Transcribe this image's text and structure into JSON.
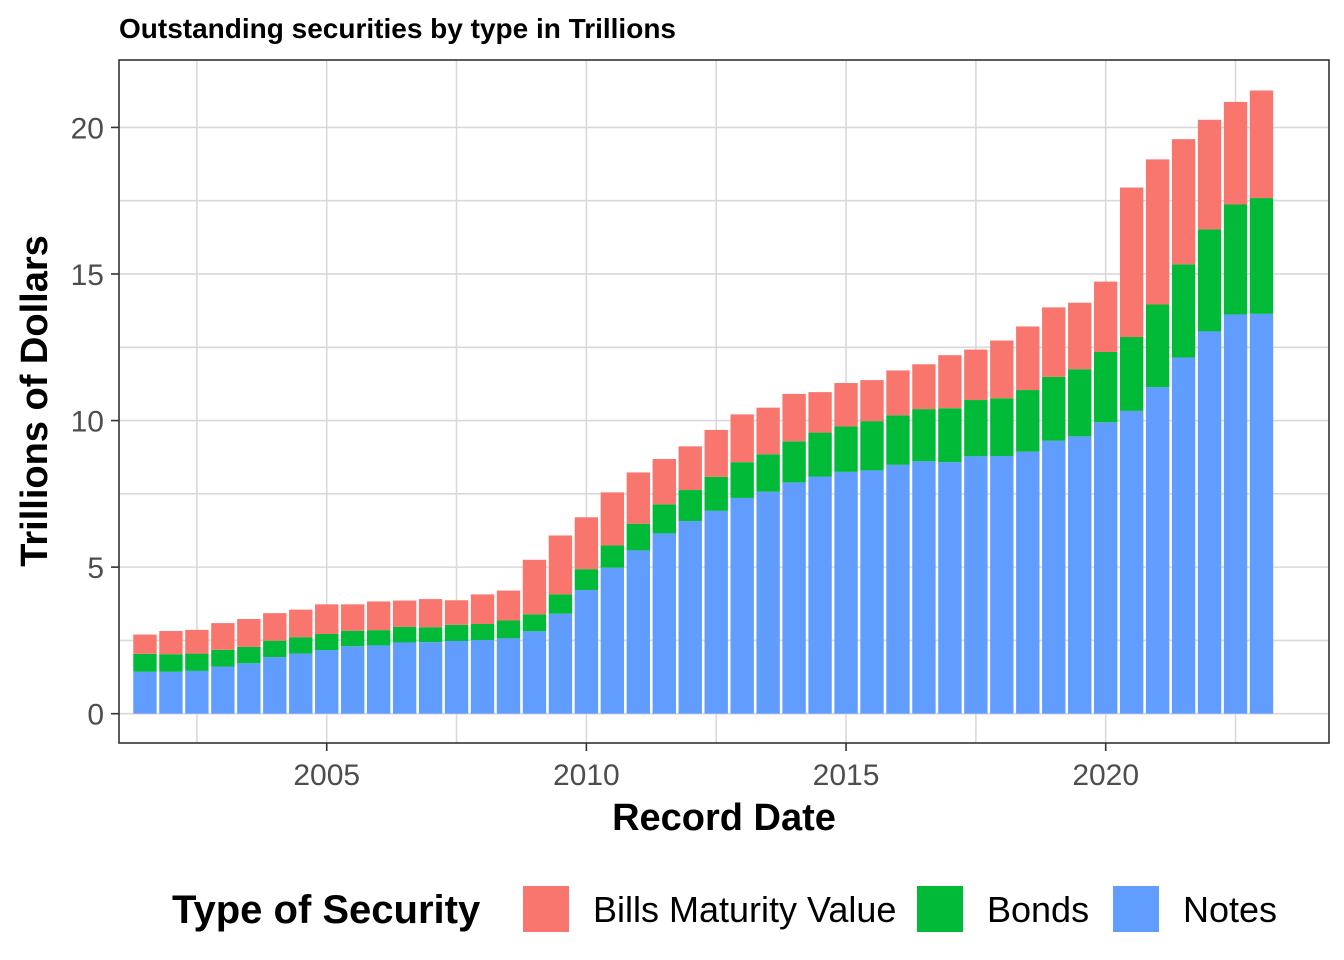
{
  "chart_data": {
    "type": "bar",
    "stacked": true,
    "title": "Outstanding securities by type in Trillions",
    "xlabel": "Record Date",
    "ylabel": "Trillions of Dollars",
    "xlim": [
      2001.0,
      2024.3
    ],
    "ylim": [
      -1.0,
      22.3
    ],
    "x_ticks": [
      2005,
      2010,
      2015,
      2020
    ],
    "y_ticks": [
      0,
      5,
      10,
      15,
      20
    ],
    "grid": true,
    "legend": {
      "title": "Type of Security",
      "position": "bottom",
      "entries": [
        "Bills Maturity Value",
        "Bonds",
        "Notes"
      ]
    },
    "x": [
      2001.5,
      2002.0,
      2002.5,
      2003.0,
      2003.5,
      2004.0,
      2004.5,
      2005.0,
      2005.5,
      2006.0,
      2006.5,
      2007.0,
      2007.5,
      2008.0,
      2008.5,
      2009.0,
      2009.5,
      2010.0,
      2010.5,
      2011.0,
      2011.5,
      2012.0,
      2012.5,
      2013.0,
      2013.5,
      2014.0,
      2014.5,
      2015.0,
      2015.5,
      2016.0,
      2016.5,
      2017.0,
      2017.5,
      2018.0,
      2018.5,
      2019.0,
      2019.5,
      2020.0,
      2020.5,
      2021.0,
      2021.5,
      2022.0,
      2022.5,
      2023.0
    ],
    "series": [
      {
        "name": "Notes",
        "color": "#619CFF",
        "values": [
          1.43,
          1.43,
          1.46,
          1.61,
          1.72,
          1.93,
          2.05,
          2.17,
          2.3,
          2.33,
          2.43,
          2.44,
          2.48,
          2.51,
          2.57,
          2.81,
          3.41,
          4.22,
          4.98,
          5.57,
          6.15,
          6.57,
          6.92,
          7.36,
          7.57,
          7.89,
          8.09,
          8.25,
          8.3,
          8.49,
          8.61,
          8.58,
          8.78,
          8.79,
          8.94,
          9.31,
          9.46,
          9.94,
          10.33,
          11.14,
          12.15,
          13.04,
          13.62,
          13.64
        ]
      },
      {
        "name": "Bonds",
        "color": "#00BA38",
        "values": [
          0.61,
          0.6,
          0.59,
          0.57,
          0.56,
          0.56,
          0.56,
          0.55,
          0.53,
          0.52,
          0.53,
          0.51,
          0.55,
          0.55,
          0.61,
          0.58,
          0.66,
          0.71,
          0.76,
          0.91,
          0.99,
          1.06,
          1.16,
          1.22,
          1.28,
          1.4,
          1.5,
          1.55,
          1.68,
          1.69,
          1.78,
          1.84,
          1.92,
          1.97,
          2.1,
          2.18,
          2.29,
          2.4,
          2.52,
          2.82,
          3.18,
          3.48,
          3.75,
          3.95
        ]
      },
      {
        "name": "Bills Maturity Value",
        "color": "#F8766D",
        "values": [
          0.66,
          0.79,
          0.81,
          0.91,
          0.95,
          0.94,
          0.94,
          1.01,
          0.9,
          0.98,
          0.9,
          0.96,
          0.84,
          1.01,
          1.02,
          1.86,
          2.01,
          1.77,
          1.81,
          1.75,
          1.55,
          1.49,
          1.6,
          1.63,
          1.59,
          1.62,
          1.38,
          1.48,
          1.4,
          1.53,
          1.53,
          1.81,
          1.72,
          1.97,
          2.17,
          2.37,
          2.27,
          2.4,
          5.1,
          4.95,
          4.27,
          3.74,
          3.5,
          3.67
        ]
      }
    ]
  }
}
